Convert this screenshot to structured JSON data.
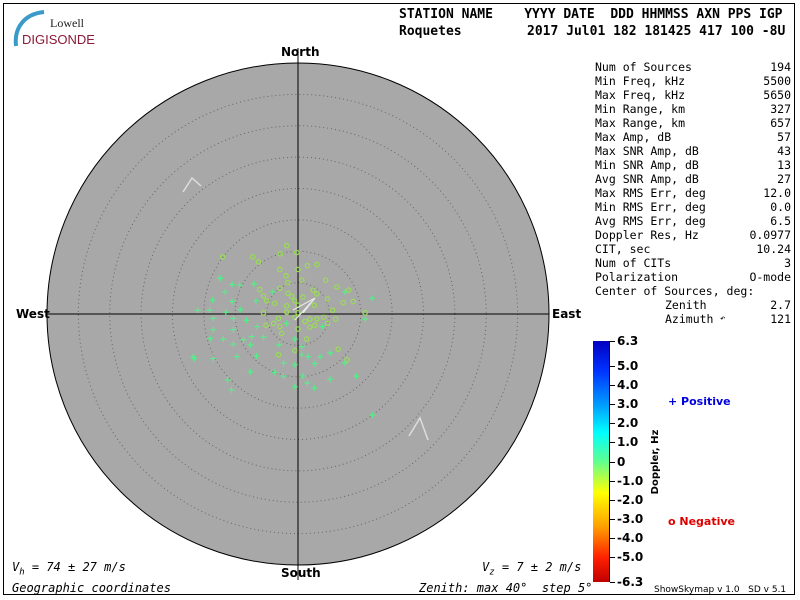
{
  "logo": {
    "line1": "Lowell",
    "line2": "DIGISONDE",
    "color": "#8b1a3a",
    "arc_color": "#3a9ac8"
  },
  "header": {
    "labels": [
      "STATION NAME",
      "YYYY DATE",
      "DDD",
      "HHMMSS",
      "AXN",
      "PPS",
      "IGP"
    ],
    "label_line": "STATION NAME    YYYY DATE  DDD HHMMSS AXN PPS IGP",
    "station": "Roquetes",
    "value_line": "2017 Jul01 182 181425 417 100 -8U"
  },
  "directions": {
    "north": "North",
    "south": "South",
    "east": "East",
    "west": "West"
  },
  "stats": [
    {
      "label": "Num of Sources",
      "value": "194"
    },
    {
      "label": "Min Freq, kHz",
      "value": "5500"
    },
    {
      "label": "Max Freq, kHz",
      "value": "5650"
    },
    {
      "label": "Min Range, km",
      "value": "327"
    },
    {
      "label": "Max Range, km",
      "value": "657"
    },
    {
      "label": "Max Amp, dB",
      "value": "57"
    },
    {
      "label": "Max SNR Amp, dB",
      "value": "43"
    },
    {
      "label": "Min SNR Amp, dB",
      "value": "13"
    },
    {
      "label": "Avg SNR Amp, dB",
      "value": "27"
    },
    {
      "label": "Max RMS Err, deg",
      "value": "12.0"
    },
    {
      "label": "Min RMS Err, deg",
      "value": "0.0"
    },
    {
      "label": "Avg RMS Err, deg",
      "value": "6.5"
    },
    {
      "label": "Doppler Res, Hz",
      "value": "0.0977"
    },
    {
      "label": "CIT, sec",
      "value": "10.24"
    },
    {
      "label": "Num of CITs",
      "value": "3"
    },
    {
      "label": "Polarization",
      "value": "O-mode"
    }
  ],
  "center": {
    "title": "Center of Sources, deg:",
    "zenith_label": "Zenith",
    "zenith": "2.7",
    "azimuth_label": "Azimuth",
    "azimuth": "121"
  },
  "colorbar": {
    "title": "Doppler, Hz",
    "ticks": [
      "6.3",
      "5.0",
      "4.0",
      "3.0",
      "2.0",
      "1.0",
      "0",
      "-1.0",
      "-2.0",
      "-3.0",
      "-4.0",
      "-5.0",
      "-6.3"
    ],
    "min": -6.3,
    "max": 6.3
  },
  "legend": {
    "positive": "Positive",
    "negative": "Negative",
    "positive_color": "#0000dd",
    "negative_color": "#dd0000"
  },
  "footer": {
    "vh_sym": "V",
    "vh_sub": "h",
    "vh_text": " = 74 ± 27 m/s",
    "vz_sym": "V",
    "vz_sub": "z",
    "vz_text": " = 7 ± 2 m/s",
    "coords": "Geographic coordinates",
    "zenith_info": "Zenith: max 40°  step 5°",
    "version": "ShowSkymap v 1.0   SD v 5.1"
  },
  "chart_data": {
    "type": "scatter",
    "projection": "polar skymap",
    "zenith_max_deg": 40,
    "zenith_step_deg": 5,
    "background": "#a8a8a8",
    "units": "degrees east / degrees north of zenith",
    "positive_color": "#55ee88",
    "negative_color": "#99dd55",
    "positive": [
      [
        -12.4,
        5.7
      ],
      [
        -10.5,
        4.7
      ],
      [
        -9.3,
        4.6
      ],
      [
        -7.0,
        4.8
      ],
      [
        -11.6,
        3.5
      ],
      [
        -13.6,
        2.2
      ],
      [
        -10.5,
        2.0
      ],
      [
        -6.7,
        2.1
      ],
      [
        -16.0,
        0.6
      ],
      [
        -14.1,
        0.6
      ],
      [
        -11.5,
        0.3
      ],
      [
        -9.2,
        0.7
      ],
      [
        -13.5,
        -0.7
      ],
      [
        -10.3,
        -0.7
      ],
      [
        -8.2,
        -1.0
      ],
      [
        -13.5,
        -2.5
      ],
      [
        -10.3,
        -2.5
      ],
      [
        -6.5,
        -2.0
      ],
      [
        -14.0,
        -3.9
      ],
      [
        -11.9,
        -4.0
      ],
      [
        -8.7,
        -4.1
      ],
      [
        -7.4,
        -3.6
      ],
      [
        -5.5,
        -3.7
      ],
      [
        -10.3,
        -4.8
      ],
      [
        -7.6,
        -4.9
      ],
      [
        -16.5,
        -7.1
      ],
      [
        -13.5,
        -7.1
      ],
      [
        -9.7,
        -6.8
      ],
      [
        -6.6,
        -6.7
      ],
      [
        -3.0,
        -4.9
      ],
      [
        -1.8,
        -1.5
      ],
      [
        -0.5,
        -4.0
      ],
      [
        0.6,
        -5.2
      ],
      [
        0.6,
        -6.5
      ],
      [
        1.6,
        -6.8
      ],
      [
        3.5,
        -6.8
      ],
      [
        5.1,
        -6.2
      ],
      [
        -2.3,
        -7.8
      ],
      [
        -0.5,
        -8.1
      ],
      [
        2.7,
        -7.9
      ],
      [
        7.5,
        -7.8
      ],
      [
        -7.6,
        -9.2
      ],
      [
        -3.7,
        -9.3
      ],
      [
        -2.3,
        -9.9
      ],
      [
        0.8,
        -9.9
      ],
      [
        -11.2,
        -10.5
      ],
      [
        5.1,
        -10.4
      ],
      [
        9.3,
        -9.9
      ],
      [
        -10.6,
        -12.1
      ],
      [
        -0.5,
        -11.6
      ],
      [
        1.5,
        -11.0
      ],
      [
        2.6,
        -11.8
      ],
      [
        11.8,
        2.5
      ],
      [
        10.7,
        -0.8
      ],
      [
        7.5,
        3.5
      ],
      [
        3.9,
        -2.0
      ],
      [
        -4.0,
        3.5
      ],
      [
        11.9,
        -16.1
      ],
      [
        -16.7,
        -6.8
      ],
      [
        -12.4,
        5.7
      ]
    ],
    "negative": [
      [
        -12.0,
        9.1
      ],
      [
        -7.2,
        9.1
      ],
      [
        -6.3,
        8.3
      ],
      [
        -1.8,
        10.9
      ],
      [
        -2.8,
        9.6
      ],
      [
        -0.2,
        9.8
      ],
      [
        -2.9,
        7.1
      ],
      [
        -1.9,
        6.1
      ],
      [
        0.0,
        7.1
      ],
      [
        1.5,
        7.7
      ],
      [
        3.0,
        7.9
      ],
      [
        4.4,
        5.4
      ],
      [
        0.6,
        5.4
      ],
      [
        -1.6,
        5.0
      ],
      [
        -2.9,
        4.1
      ],
      [
        -6.1,
        3.9
      ],
      [
        -1.6,
        3.3
      ],
      [
        -1.0,
        2.8
      ],
      [
        2.4,
        3.8
      ],
      [
        3.0,
        3.2
      ],
      [
        6.2,
        4.3
      ],
      [
        8.1,
        3.8
      ],
      [
        4.7,
        2.4
      ],
      [
        7.2,
        1.8
      ],
      [
        8.8,
        2.0
      ],
      [
        -5.5,
        2.9
      ],
      [
        -5.0,
        2.1
      ],
      [
        -3.7,
        1.7
      ],
      [
        -1.8,
        1.3
      ],
      [
        -0.5,
        2.1
      ],
      [
        0.8,
        2.7
      ],
      [
        2.6,
        1.4
      ],
      [
        5.5,
        0.6
      ],
      [
        10.7,
        0.2
      ],
      [
        -1.8,
        0.3
      ],
      [
        -5.5,
        0.2
      ],
      [
        -3.1,
        -0.7
      ],
      [
        -0.5,
        -0.5
      ],
      [
        1.1,
        -1.2
      ],
      [
        1.9,
        -0.8
      ],
      [
        3.0,
        -0.8
      ],
      [
        4.1,
        -0.5
      ],
      [
        6.0,
        -0.8
      ],
      [
        4.7,
        -1.5
      ],
      [
        2.7,
        -1.8
      ],
      [
        1.9,
        -2.1
      ],
      [
        0.0,
        -2.4
      ],
      [
        -3.9,
        -1.5
      ],
      [
        -5.1,
        -1.8
      ],
      [
        -2.9,
        -2.0
      ],
      [
        -2.6,
        -3.1
      ],
      [
        1.4,
        -4.0
      ],
      [
        6.4,
        -5.6
      ],
      [
        7.8,
        -7.3
      ],
      [
        -3.1,
        -6.5
      ],
      [
        -0.5,
        -5.8
      ],
      [
        0.0,
        0.2
      ],
      [
        0.0,
        1.4
      ]
    ],
    "center_of_sources": {
      "zenith": 2.7,
      "azimuth": 121
    }
  }
}
